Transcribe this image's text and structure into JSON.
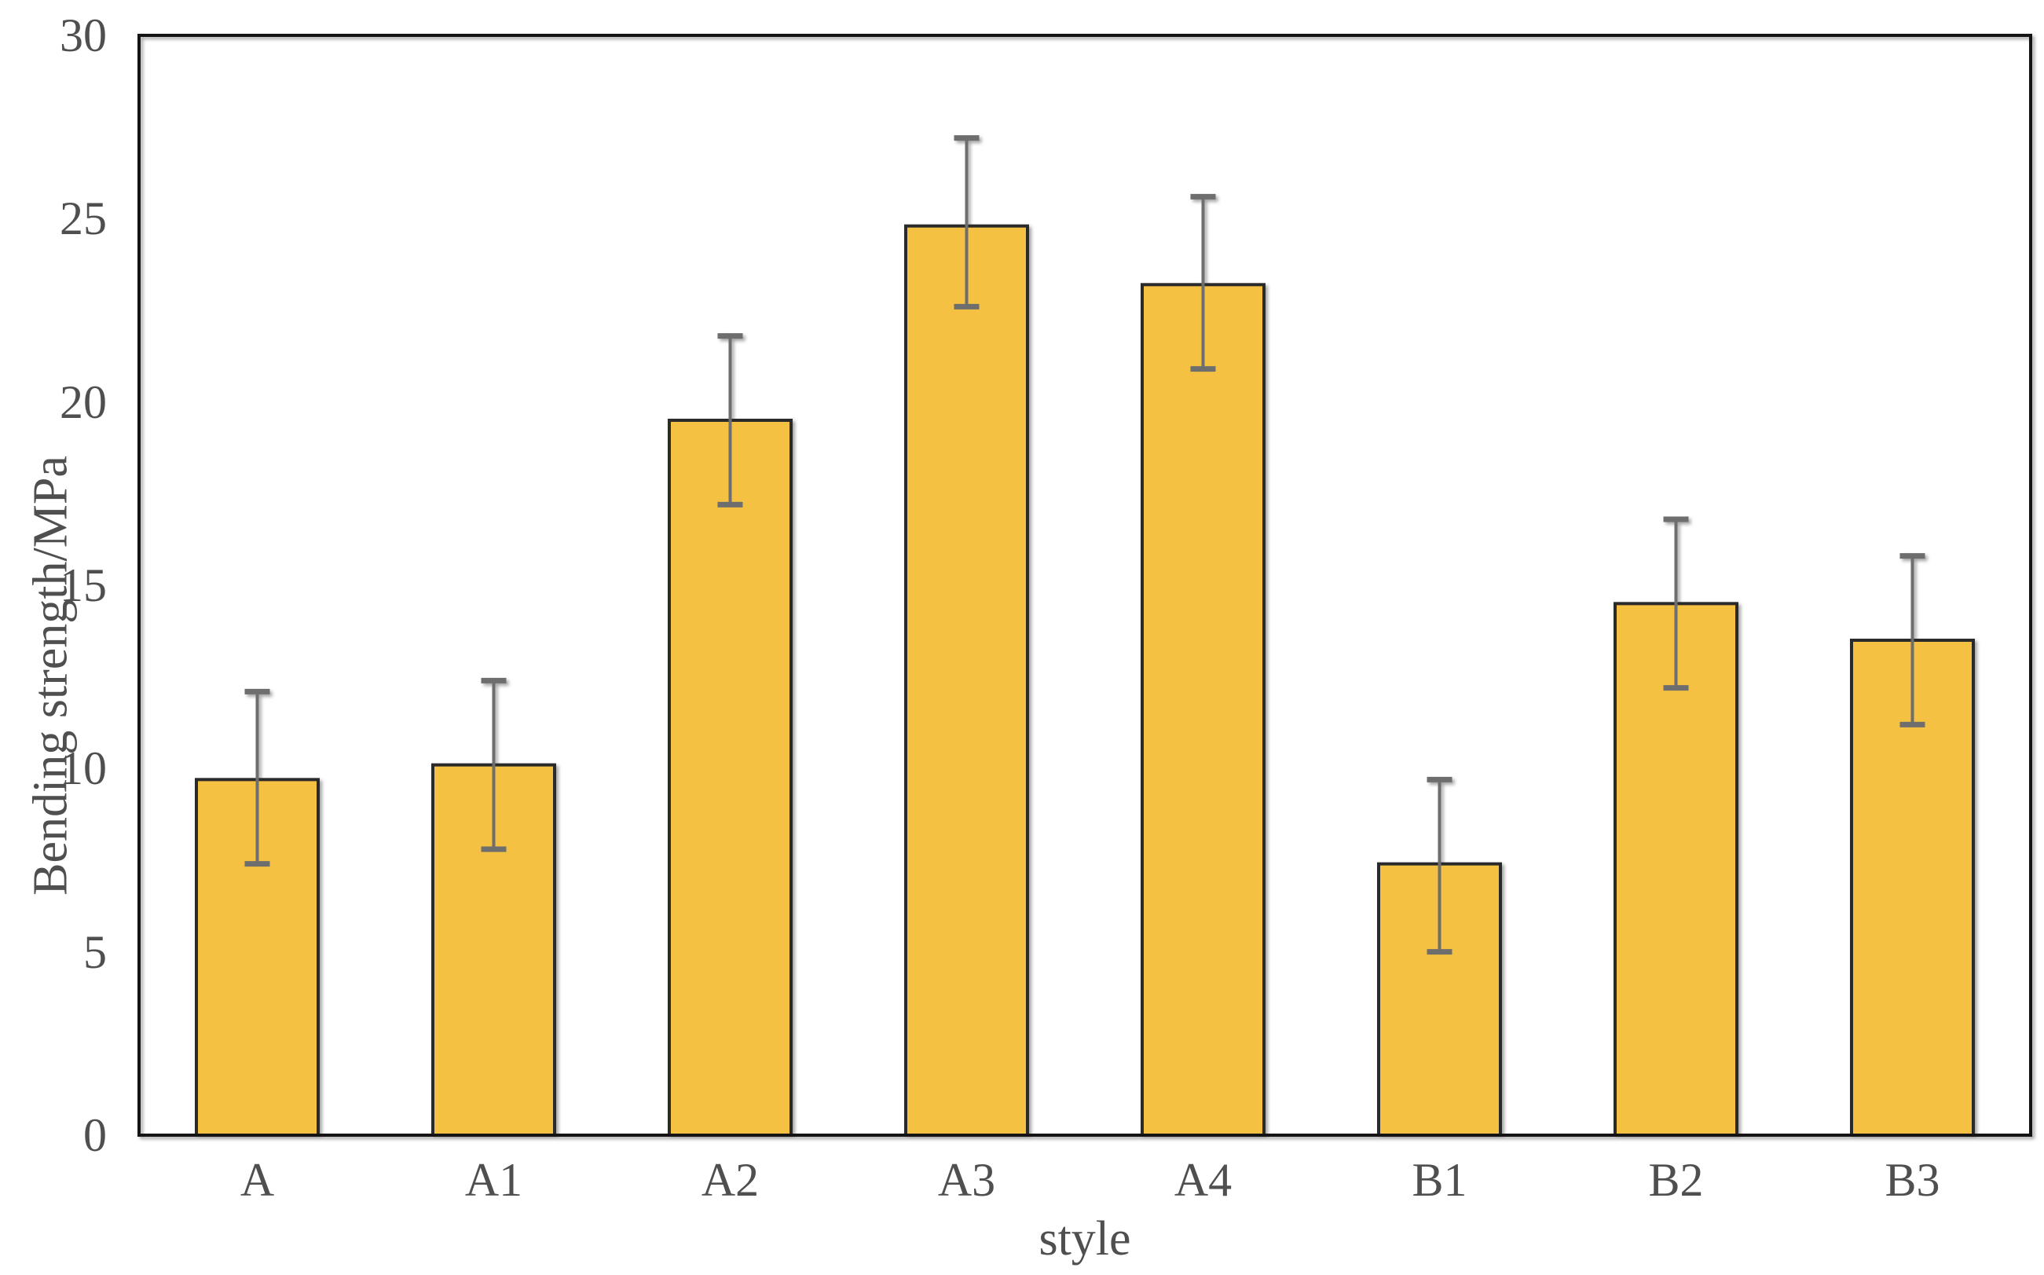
{
  "page": {
    "background_color": "#ffffff"
  },
  "chart_data": {
    "type": "bar",
    "title": "",
    "xlabel": "style",
    "ylabel": "Bending strength/MPa",
    "categories": [
      "A",
      "A1",
      "A2",
      "A3",
      "A4",
      "B1",
      "B2",
      "B3"
    ],
    "values": [
      9.7,
      10.1,
      19.5,
      24.8,
      23.2,
      7.4,
      14.5,
      13.5
    ],
    "error_plus": [
      2.4,
      2.3,
      2.3,
      2.4,
      2.4,
      2.3,
      2.3,
      2.3
    ],
    "error_minus": [
      2.3,
      2.3,
      2.3,
      2.2,
      2.3,
      2.4,
      2.3,
      2.3
    ],
    "yticks": [
      0,
      5,
      10,
      15,
      20,
      25,
      30
    ],
    "ylim": [
      0,
      30
    ],
    "grid": false,
    "legend": null,
    "bar_color": "#F5C142",
    "bar_edge_color": "#2A2A2A",
    "error_bar_color": "#6E6E6E",
    "frame_color": "#141414",
    "text_color": "#4F4F4F"
  }
}
